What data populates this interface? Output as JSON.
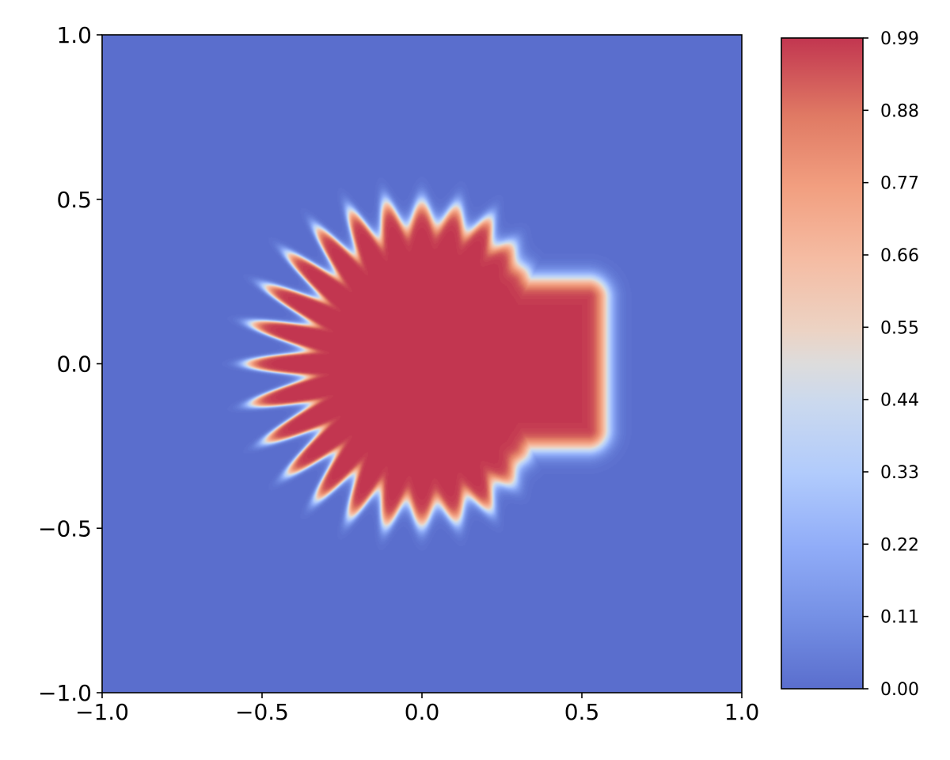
{
  "chart_data": {
    "type": "contour",
    "title": "",
    "xlabel": "",
    "ylabel": "",
    "xlim": [
      -1.0,
      1.0
    ],
    "ylim": [
      -1.0,
      1.0
    ],
    "x_ticks": [
      -1.0,
      -0.5,
      0.0,
      0.5,
      1.0
    ],
    "x_tick_labels": [
      "−1.0",
      "−0.5",
      "0.0",
      "0.5",
      "1.0"
    ],
    "y_ticks": [
      -1.0,
      -0.5,
      0.0,
      0.5,
      1.0
    ],
    "y_tick_labels": [
      "−1.0",
      "−0.5",
      "0.0",
      "0.5",
      "1.0"
    ],
    "grid": false,
    "colormap": "coolwarm",
    "colorbar": {
      "range": [
        0.0,
        0.99
      ],
      "ticks": [
        0.0,
        0.11,
        0.22,
        0.33,
        0.44,
        0.55,
        0.66,
        0.77,
        0.88,
        0.99
      ],
      "tick_labels": [
        "0.00",
        "0.11",
        "0.22",
        "0.33",
        "0.44",
        "0.55",
        "0.66",
        "0.77",
        "0.88",
        "0.99"
      ],
      "placement": "right"
    },
    "shape": {
      "base_radius": 0.5,
      "num_fingers": 28,
      "finger_amplitude": 0.18,
      "edge_width": 0.06,
      "left_lobe_radius": 0.35,
      "right_plateau_x": 0.52,
      "right_plateau_half_height": 0.2
    },
    "color_min": "#6172d0",
    "color_max": "#c23650"
  }
}
